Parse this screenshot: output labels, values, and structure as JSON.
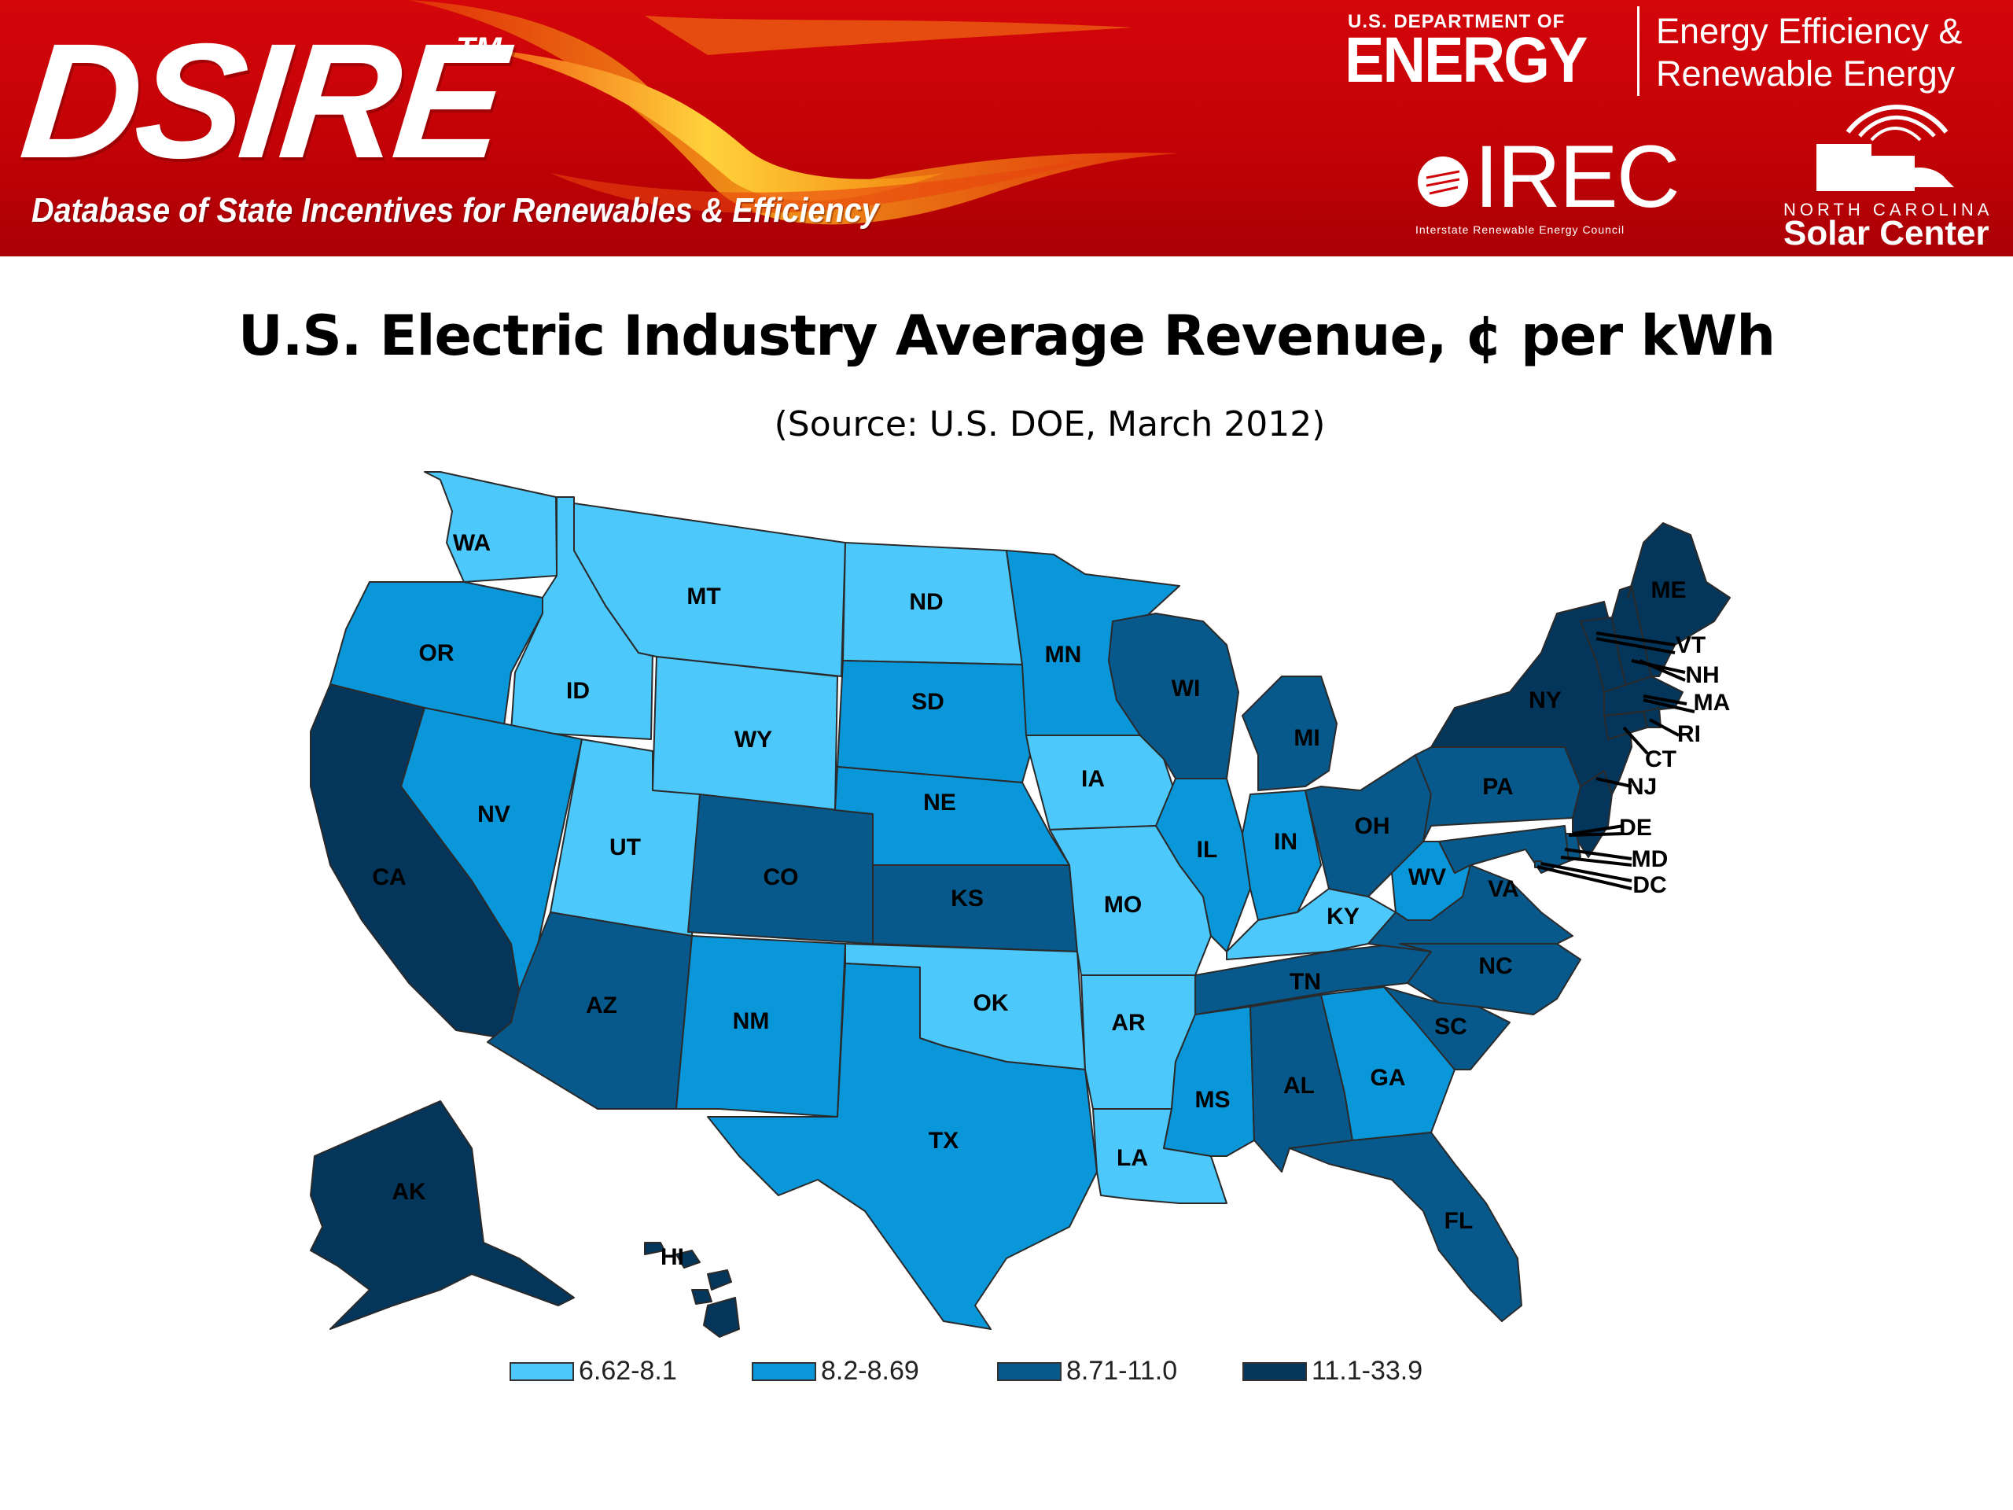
{
  "banner": {
    "logo": "DSIRE",
    "tm": "TM",
    "tagline": "Database of State Incentives for Renewables & Efficiency",
    "doe_line1": "U.S. DEPARTMENT OF",
    "doe_line2": "ENERGY",
    "eere_line1": "Energy Efficiency &",
    "eere_line2": "Renewable Energy",
    "irec": "IREC",
    "irec_sub": "Interstate Renewable Energy Council",
    "ncsc_line1": "NORTH CAROLINA",
    "ncsc_line2": "Solar Center"
  },
  "title": "U.S. Electric Industry Average Revenue, ¢ per kWh",
  "source": "(Source: U.S. DOE, March 2012)",
  "legend": [
    {
      "label": "6.62-8.1",
      "color": "#4cc8fb"
    },
    {
      "label": "8.2-8.69",
      "color": "#0a97d9"
    },
    {
      "label": "8.71-11.0",
      "color": "#07598c"
    },
    {
      "label": "11.1-33.9",
      "color": "#04355a"
    }
  ],
  "states": [
    {
      "abbr": "WA",
      "class": 0
    },
    {
      "abbr": "OR",
      "class": 1
    },
    {
      "abbr": "CA",
      "class": 3
    },
    {
      "abbr": "ID",
      "class": 0
    },
    {
      "abbr": "NV",
      "class": 1
    },
    {
      "abbr": "MT",
      "class": 0
    },
    {
      "abbr": "WY",
      "class": 0
    },
    {
      "abbr": "UT",
      "class": 0
    },
    {
      "abbr": "AZ",
      "class": 2
    },
    {
      "abbr": "CO",
      "class": 2
    },
    {
      "abbr": "NM",
      "class": 1
    },
    {
      "abbr": "ND",
      "class": 0
    },
    {
      "abbr": "SD",
      "class": 1
    },
    {
      "abbr": "NE",
      "class": 1
    },
    {
      "abbr": "KS",
      "class": 2
    },
    {
      "abbr": "OK",
      "class": 0
    },
    {
      "abbr": "TX",
      "class": 1
    },
    {
      "abbr": "MN",
      "class": 1
    },
    {
      "abbr": "IA",
      "class": 0
    },
    {
      "abbr": "MO",
      "class": 0
    },
    {
      "abbr": "AR",
      "class": 0
    },
    {
      "abbr": "LA",
      "class": 0
    },
    {
      "abbr": "WI",
      "class": 2
    },
    {
      "abbr": "IL",
      "class": 1
    },
    {
      "abbr": "MS",
      "class": 1
    },
    {
      "abbr": "MI",
      "class": 2
    },
    {
      "abbr": "IN",
      "class": 1
    },
    {
      "abbr": "KY",
      "class": 0
    },
    {
      "abbr": "TN",
      "class": 2
    },
    {
      "abbr": "AL",
      "class": 2
    },
    {
      "abbr": "OH",
      "class": 2
    },
    {
      "abbr": "GA",
      "class": 1
    },
    {
      "abbr": "FL",
      "class": 2
    },
    {
      "abbr": "WV",
      "class": 1
    },
    {
      "abbr": "VA",
      "class": 2
    },
    {
      "abbr": "NC",
      "class": 2
    },
    {
      "abbr": "SC",
      "class": 2
    },
    {
      "abbr": "PA",
      "class": 2
    },
    {
      "abbr": "NY",
      "class": 3
    },
    {
      "abbr": "VT",
      "class": 3
    },
    {
      "abbr": "NH",
      "class": 3
    },
    {
      "abbr": "ME",
      "class": 3
    },
    {
      "abbr": "MA",
      "class": 3
    },
    {
      "abbr": "RI",
      "class": 3
    },
    {
      "abbr": "CT",
      "class": 3
    },
    {
      "abbr": "NJ",
      "class": 3
    },
    {
      "abbr": "DE",
      "class": 2
    },
    {
      "abbr": "MD",
      "class": 2
    },
    {
      "abbr": "DC",
      "class": 2
    },
    {
      "abbr": "AK",
      "class": 3
    },
    {
      "abbr": "HI",
      "class": 3
    }
  ]
}
